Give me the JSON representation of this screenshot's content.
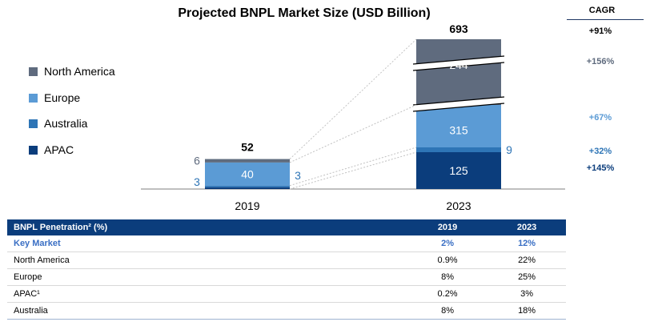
{
  "chart_data": {
    "type": "bar",
    "stacked": true,
    "title": "Projected BNPL Market Size (USD Billion)",
    "categories": [
      "2019",
      "2023"
    ],
    "totals": [
      "52",
      "693"
    ],
    "series": [
      {
        "name": "APAC",
        "color": "#0b3d7c",
        "values": [
          3,
          125
        ],
        "labels": [
          "3",
          "125"
        ]
      },
      {
        "name": "Australia",
        "color": "#2e75b6",
        "values": [
          3,
          9
        ],
        "labels": [
          "3",
          "9"
        ]
      },
      {
        "name": "Europe",
        "color": "#5b9bd5",
        "values": [
          40,
          315
        ],
        "labels": [
          "40",
          "315"
        ]
      },
      {
        "name": "North America",
        "color": "#5f6b7e",
        "values": [
          6,
          244
        ],
        "labels": [
          "6",
          "244"
        ]
      }
    ],
    "legend_order": [
      "North America",
      "Europe",
      "Australia",
      "APAC"
    ],
    "legend_position": "left",
    "axis_breaks": true,
    "grid": false
  },
  "cagr": {
    "header": "CAGR",
    "total": "+91%",
    "north_america": "+156%",
    "europe": "+67%",
    "australia": "+32%",
    "apac": "+145%"
  },
  "table": {
    "headers": [
      "BNPL Penetration² (%)",
      "2019",
      "2023"
    ],
    "rows": [
      {
        "label": "Key Market",
        "v2019": "2%",
        "v2023": "12%"
      },
      {
        "label": "North America",
        "v2019": "0.9%",
        "v2023": "22%"
      },
      {
        "label": "Europe",
        "v2019": "8%",
        "v2023": "25%"
      },
      {
        "label": "APAC¹",
        "v2019": "0.2%",
        "v2023": "3%"
      },
      {
        "label": "Australia",
        "v2019": "8%",
        "v2023": "18%"
      }
    ]
  }
}
